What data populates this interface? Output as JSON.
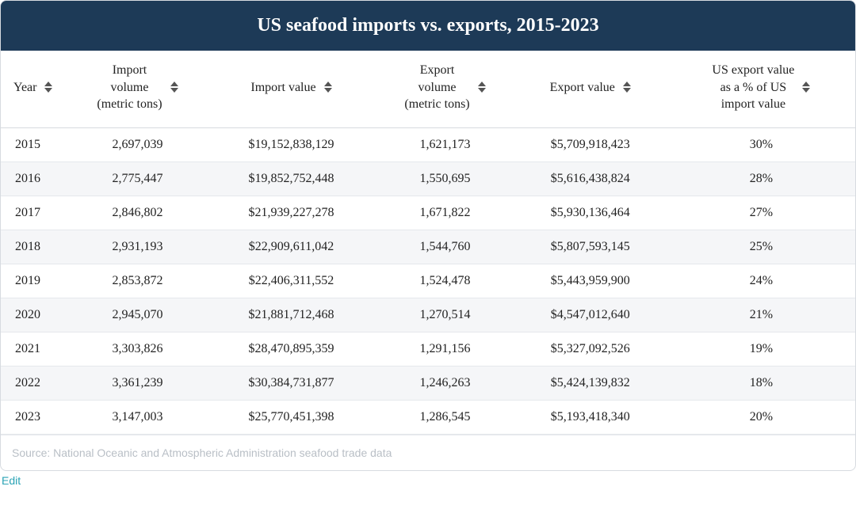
{
  "title": "US seafood imports vs. exports, 2015-2023",
  "title_bg": "#1d3a57",
  "title_color": "#ffffff",
  "columns": [
    {
      "key": "year",
      "label": "Year",
      "multiline": [
        "Year"
      ],
      "width": "8%"
    },
    {
      "key": "import_vol",
      "label": "Import volume (metric tons)",
      "multiline": [
        "Import",
        "volume",
        "(metric tons)"
      ],
      "width": "16%"
    },
    {
      "key": "import_val",
      "label": "Import value",
      "multiline": [
        "Import value"
      ],
      "width": "20%"
    },
    {
      "key": "export_vol",
      "label": "Export volume (metric tons)",
      "multiline": [
        "Export",
        "volume",
        "(metric tons)"
      ],
      "width": "16%"
    },
    {
      "key": "export_val",
      "label": "Export value",
      "multiline": [
        "Export value"
      ],
      "width": "18%"
    },
    {
      "key": "pct",
      "label": "US export value as a % of US import value",
      "multiline": [
        "US export value",
        "as a % of US",
        "import value"
      ],
      "width": "22%"
    }
  ],
  "rows": [
    {
      "year": "2015",
      "import_vol": "2,697,039",
      "import_val": "$19,152,838,129",
      "export_vol": "1,621,173",
      "export_val": "$5,709,918,423",
      "pct": "30%"
    },
    {
      "year": "2016",
      "import_vol": "2,775,447",
      "import_val": "$19,852,752,448",
      "export_vol": "1,550,695",
      "export_val": "$5,616,438,824",
      "pct": "28%"
    },
    {
      "year": "2017",
      "import_vol": "2,846,802",
      "import_val": "$21,939,227,278",
      "export_vol": "1,671,822",
      "export_val": "$5,930,136,464",
      "pct": "27%"
    },
    {
      "year": "2018",
      "import_vol": "2,931,193",
      "import_val": "$22,909,611,042",
      "export_vol": "1,544,760",
      "export_val": "$5,807,593,145",
      "pct": "25%"
    },
    {
      "year": "2019",
      "import_vol": "2,853,872",
      "import_val": "$22,406,311,552",
      "export_vol": "1,524,478",
      "export_val": "$5,443,959,900",
      "pct": "24%"
    },
    {
      "year": "2020",
      "import_vol": "2,945,070",
      "import_val": "$21,881,712,468",
      "export_vol": "1,270,514",
      "export_val": "$4,547,012,640",
      "pct": "21%"
    },
    {
      "year": "2021",
      "import_vol": "3,303,826",
      "import_val": "$28,470,895,359",
      "export_vol": "1,291,156",
      "export_val": "$5,327,092,526",
      "pct": "19%"
    },
    {
      "year": "2022",
      "import_vol": "3,361,239",
      "import_val": "$30,384,731,877",
      "export_vol": "1,246,263",
      "export_val": "$5,424,139,832",
      "pct": "18%"
    },
    {
      "year": "2023",
      "import_vol": "3,147,003",
      "import_val": "$25,770,451,398",
      "export_vol": "1,286,545",
      "export_val": "$5,193,418,340",
      "pct": "20%"
    }
  ],
  "source": "Source: National Oceanic and Atmospheric Administration seafood trade data",
  "edit_label": "Edit",
  "stripe_even_bg": "#f5f6f8",
  "border_color": "#d7dbe0",
  "body_fontsize": 16,
  "header_fontsize": 16
}
